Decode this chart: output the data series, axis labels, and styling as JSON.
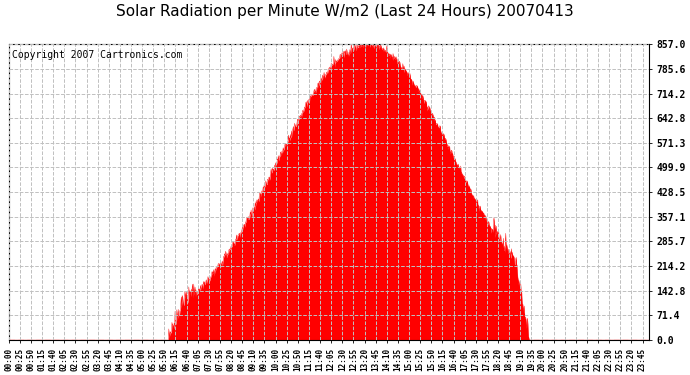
{
  "title": "Solar Radiation per Minute W/m2 (Last 24 Hours) 20070413",
  "copyright_text": "Copyright 2007 Cartronics.com",
  "ytick_labels": [
    0.0,
    71.4,
    142.8,
    214.2,
    285.7,
    357.1,
    428.5,
    499.9,
    571.3,
    642.8,
    714.2,
    785.6,
    857.0
  ],
  "ymax": 857.0,
  "ymin": 0.0,
  "fill_color": "#FF0000",
  "line_color": "#FF0000",
  "background_color": "#FFFFFF",
  "grid_color": "#C0C0C0",
  "dashed_line_color": "#FF0000",
  "title_fontsize": 11,
  "copyright_fontsize": 7,
  "peak_time": 805,
  "sigma": 200,
  "sunrise": 360,
  "sunset": 1170
}
